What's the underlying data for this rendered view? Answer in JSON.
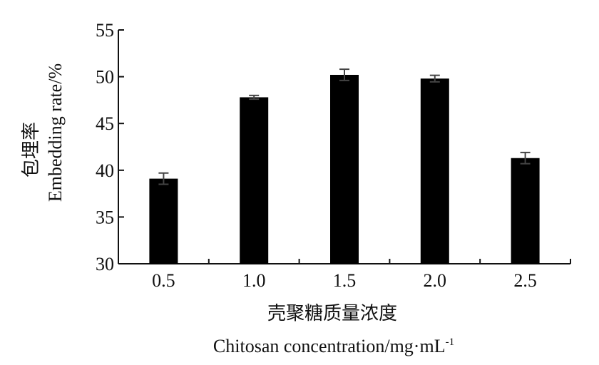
{
  "chart_data": {
    "type": "bar",
    "categories": [
      "0.5",
      "1.0",
      "1.5",
      "2.0",
      "2.5"
    ],
    "values": [
      39.1,
      47.8,
      50.2,
      49.8,
      41.3
    ],
    "errors": [
      0.6,
      0.2,
      0.6,
      0.35,
      0.6
    ],
    "ylim": [
      30,
      55
    ],
    "yticks": [
      "30",
      "35",
      "40",
      "45",
      "50",
      "55"
    ],
    "ylabel_cn": "包埋率",
    "ylabel_en": "Embedding rate/%",
    "xlabel_cn": "壳聚糖质量浓度",
    "xlabel_en": "Chitosan concentration/mg·mL",
    "xlabel_sup": "-1",
    "grid": false,
    "bar_color": "#000000"
  }
}
